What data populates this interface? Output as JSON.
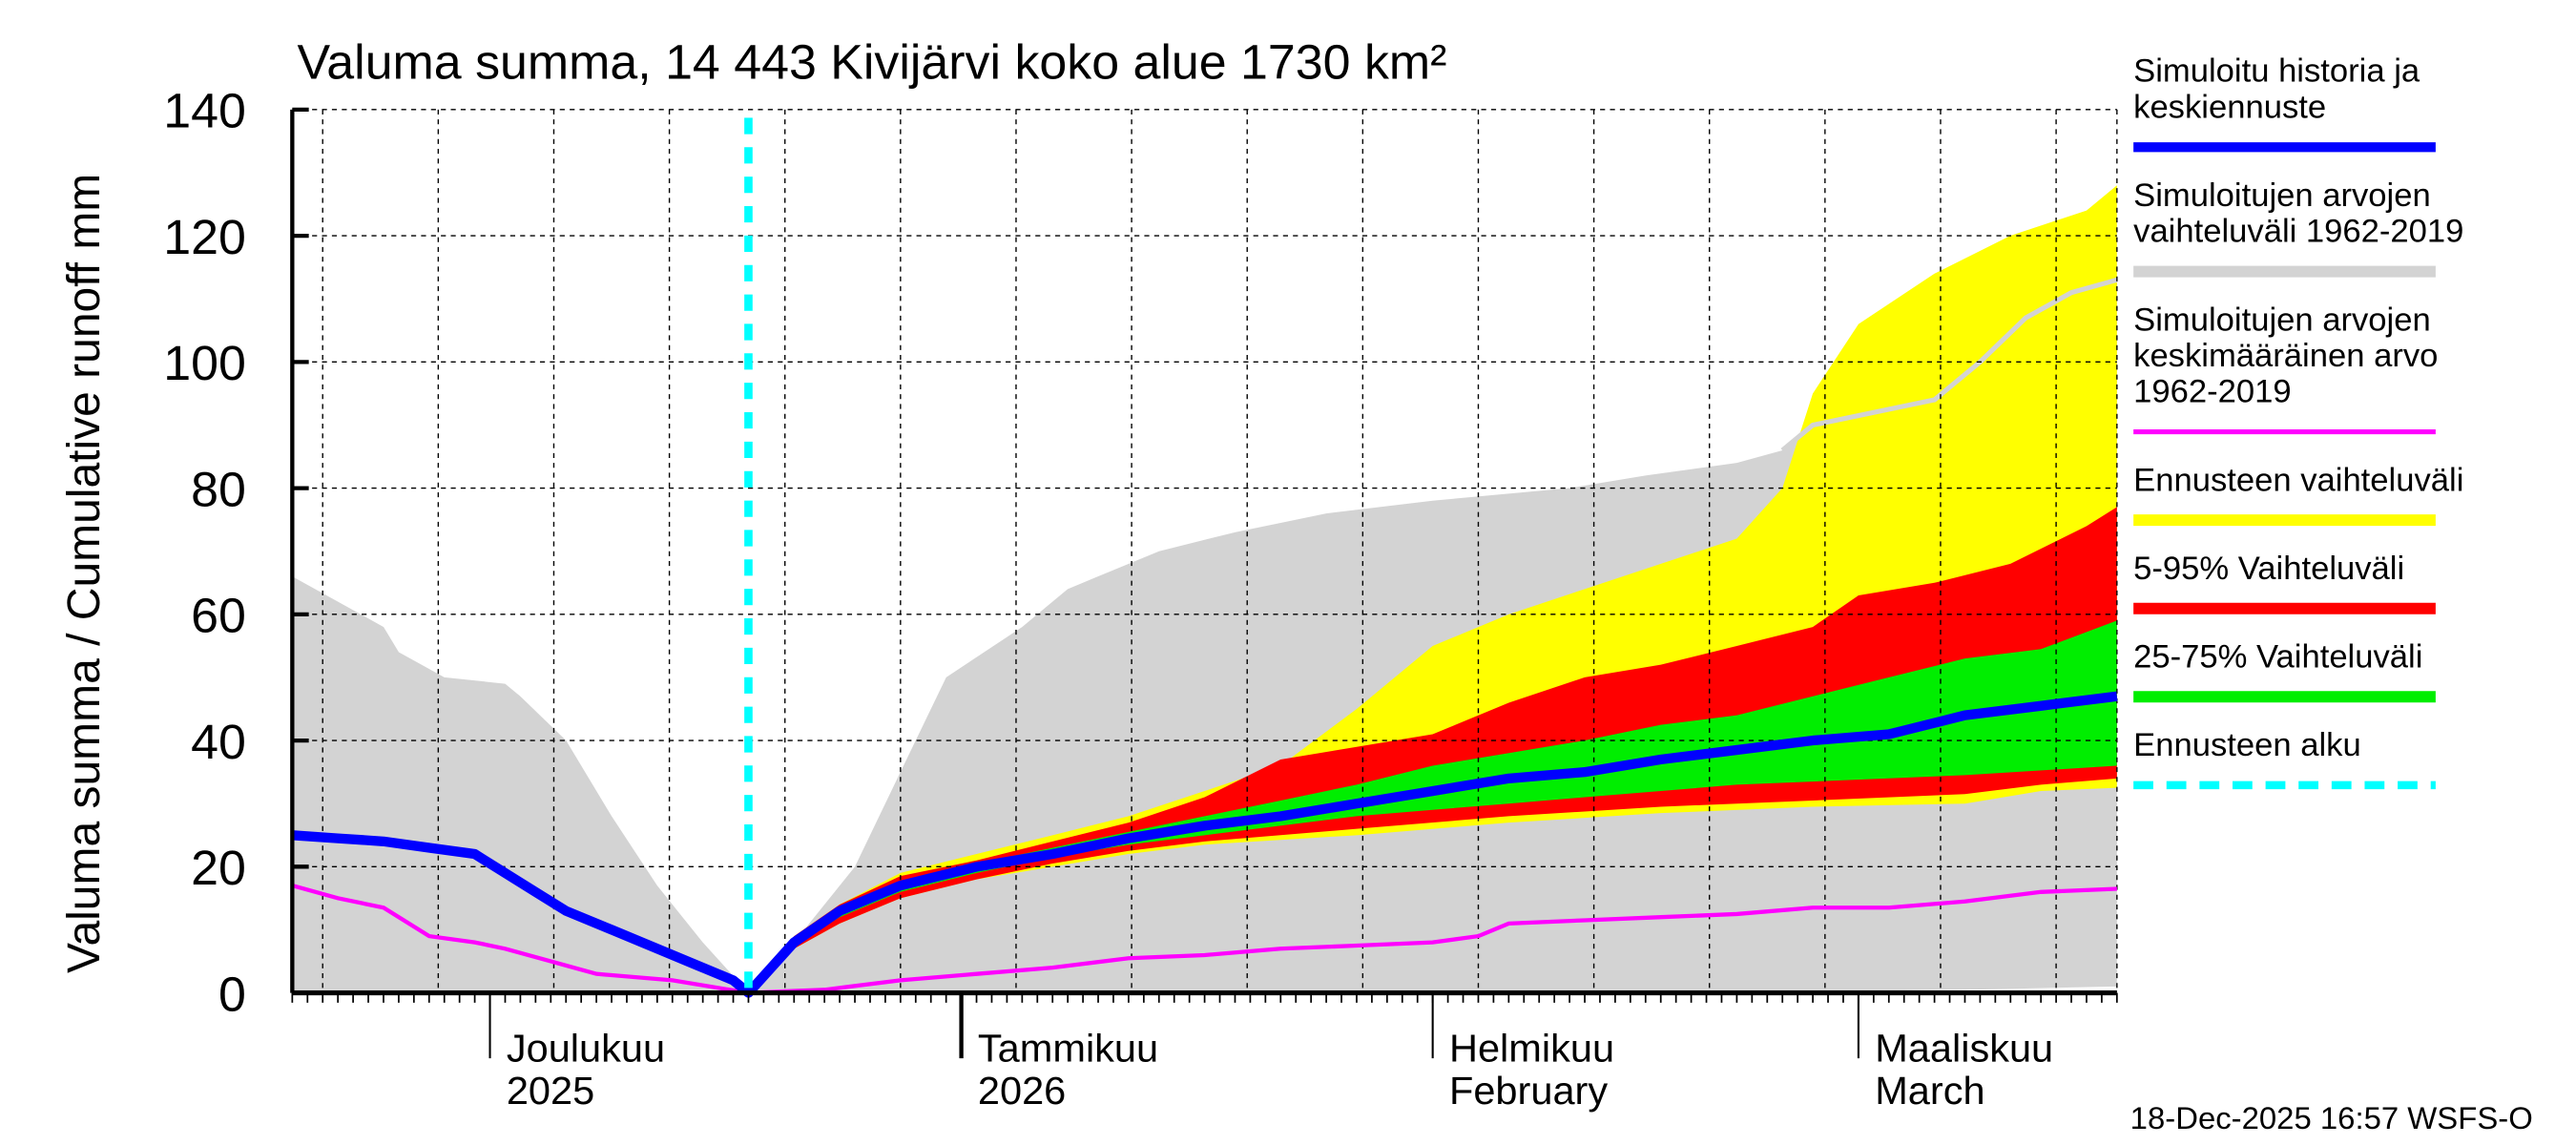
{
  "chart_data": {
    "type": "area",
    "title": "Valuma summa, 14 443 Kivijärvi koko alue 1730 km²",
    "ylabel": "Valuma summa / Cumulative runoff    mm",
    "xlabel": "",
    "x_unit": "days since 2025-11-18",
    "xlim": [
      0,
      120
    ],
    "ylim": [
      0,
      140
    ],
    "yticks": [
      0,
      20,
      40,
      60,
      80,
      100,
      120,
      140
    ],
    "grid": true,
    "legend_position": "right",
    "month_labels": [
      {
        "day": 13,
        "line1": "Joulukuu",
        "line2": "2025"
      },
      {
        "day": 44,
        "line1": "Tammikuu",
        "line2": "2026"
      },
      {
        "day": 75,
        "line1": "Helmikuu",
        "line2": "February"
      },
      {
        "day": 103,
        "line1": "Maaliskuu",
        "line2": "March"
      }
    ],
    "forecast_start_day": 30,
    "series": {
      "hist_range_upper": [
        [
          0,
          66
        ],
        [
          6,
          58
        ],
        [
          7,
          54
        ],
        [
          10,
          50
        ],
        [
          14,
          49
        ],
        [
          15,
          47
        ],
        [
          18,
          40
        ],
        [
          21,
          28
        ],
        [
          24,
          17
        ],
        [
          27,
          8
        ],
        [
          30,
          0
        ],
        [
          33,
          8
        ],
        [
          37,
          20
        ],
        [
          40,
          35
        ],
        [
          43,
          50
        ],
        [
          48,
          58
        ],
        [
          51,
          64
        ],
        [
          57,
          70
        ],
        [
          62,
          73
        ],
        [
          68,
          76
        ],
        [
          75,
          78
        ],
        [
          84,
          80
        ],
        [
          89,
          82
        ],
        [
          95,
          84
        ],
        [
          98,
          86
        ],
        [
          100,
          90
        ],
        [
          106,
          93
        ],
        [
          108,
          94
        ],
        [
          111,
          100
        ],
        [
          114,
          107
        ],
        [
          117,
          111
        ],
        [
          120,
          113
        ]
      ],
      "hist_range_lower": [
        [
          0,
          0
        ],
        [
          30,
          0
        ],
        [
          60,
          0
        ],
        [
          90,
          0
        ],
        [
          110,
          0.5
        ],
        [
          120,
          1
        ]
      ],
      "forecast_range_upper": [
        [
          30,
          0
        ],
        [
          33,
          9
        ],
        [
          36,
          14
        ],
        [
          40,
          19
        ],
        [
          45,
          22
        ],
        [
          50,
          25
        ],
        [
          55,
          28
        ],
        [
          60,
          32
        ],
        [
          65,
          36
        ],
        [
          70,
          45
        ],
        [
          75,
          55
        ],
        [
          80,
          60
        ],
        [
          85,
          64
        ],
        [
          90,
          68
        ],
        [
          95,
          72
        ],
        [
          98,
          80
        ],
        [
          100,
          95
        ],
        [
          103,
          106
        ],
        [
          108,
          114
        ],
        [
          113,
          120
        ],
        [
          118,
          124
        ],
        [
          120,
          128
        ]
      ],
      "forecast_range_lower": [
        [
          30,
          0
        ],
        [
          33,
          7
        ],
        [
          36,
          11
        ],
        [
          40,
          15
        ],
        [
          45,
          18
        ],
        [
          50,
          20
        ],
        [
          55,
          22
        ],
        [
          60,
          23.5
        ],
        [
          70,
          25
        ],
        [
          80,
          27
        ],
        [
          90,
          28.5
        ],
        [
          100,
          29.5
        ],
        [
          110,
          30
        ],
        [
          115,
          32
        ],
        [
          120,
          32.5
        ]
      ],
      "p95": [
        [
          30,
          0
        ],
        [
          33,
          9
        ],
        [
          36,
          14
        ],
        [
          40,
          18.5
        ],
        [
          45,
          21
        ],
        [
          50,
          24
        ],
        [
          55,
          27
        ],
        [
          60,
          31
        ],
        [
          65,
          37
        ],
        [
          70,
          39
        ],
        [
          75,
          41
        ],
        [
          80,
          46
        ],
        [
          85,
          50
        ],
        [
          90,
          52
        ],
        [
          95,
          55
        ],
        [
          100,
          58
        ],
        [
          103,
          63
        ],
        [
          108,
          65
        ],
        [
          113,
          68
        ],
        [
          118,
          74
        ],
        [
          120,
          77
        ]
      ],
      "p5": [
        [
          30,
          0
        ],
        [
          33,
          7
        ],
        [
          36,
          11
        ],
        [
          40,
          15
        ],
        [
          45,
          18
        ],
        [
          50,
          20.5
        ],
        [
          55,
          22.5
        ],
        [
          60,
          24
        ],
        [
          70,
          26
        ],
        [
          80,
          28
        ],
        [
          90,
          29.5
        ],
        [
          100,
          30.5
        ],
        [
          110,
          31.5
        ],
        [
          115,
          33
        ],
        [
          120,
          34
        ]
      ],
      "p75": [
        [
          30,
          0
        ],
        [
          33,
          8.5
        ],
        [
          36,
          13
        ],
        [
          40,
          17.5
        ],
        [
          45,
          20.5
        ],
        [
          50,
          23
        ],
        [
          55,
          25.5
        ],
        [
          60,
          28
        ],
        [
          65,
          30.5
        ],
        [
          70,
          33
        ],
        [
          75,
          36
        ],
        [
          80,
          38
        ],
        [
          85,
          40
        ],
        [
          90,
          42.5
        ],
        [
          95,
          44
        ],
        [
          100,
          47
        ],
        [
          105,
          50
        ],
        [
          110,
          53
        ],
        [
          115,
          54.5
        ],
        [
          120,
          59
        ]
      ],
      "p25": [
        [
          30,
          0
        ],
        [
          33,
          7.5
        ],
        [
          36,
          12
        ],
        [
          40,
          16
        ],
        [
          45,
          19
        ],
        [
          50,
          21.5
        ],
        [
          55,
          23.5
        ],
        [
          60,
          25
        ],
        [
          65,
          26.5
        ],
        [
          70,
          28
        ],
        [
          75,
          29
        ],
        [
          80,
          30
        ],
        [
          85,
          31
        ],
        [
          90,
          32
        ],
        [
          95,
          33
        ],
        [
          100,
          33.5
        ],
        [
          110,
          34.5
        ],
        [
          120,
          36
        ]
      ],
      "simulated_median": [
        [
          0,
          25
        ],
        [
          3,
          24.5
        ],
        [
          6,
          24
        ],
        [
          9,
          23
        ],
        [
          12,
          22
        ],
        [
          14,
          19
        ],
        [
          16,
          16
        ],
        [
          18,
          13
        ],
        [
          21,
          10
        ],
        [
          24,
          7
        ],
        [
          27,
          4
        ],
        [
          29,
          2
        ],
        [
          30,
          0
        ],
        [
          33,
          8
        ],
        [
          36,
          13
        ],
        [
          40,
          17
        ],
        [
          45,
          20
        ],
        [
          50,
          22
        ],
        [
          55,
          24.5
        ],
        [
          60,
          26.5
        ],
        [
          65,
          28
        ],
        [
          70,
          30
        ],
        [
          75,
          32
        ],
        [
          80,
          34
        ],
        [
          85,
          35
        ],
        [
          90,
          37
        ],
        [
          95,
          38.5
        ],
        [
          100,
          40
        ],
        [
          105,
          41
        ],
        [
          110,
          44
        ],
        [
          115,
          45.5
        ],
        [
          120,
          47
        ]
      ],
      "hist_mean": [
        [
          0,
          17
        ],
        [
          3,
          15
        ],
        [
          6,
          13.5
        ],
        [
          9,
          9
        ],
        [
          12,
          8
        ],
        [
          14,
          7
        ],
        [
          17,
          5
        ],
        [
          20,
          3
        ],
        [
          25,
          2
        ],
        [
          30,
          0
        ],
        [
          35,
          0.5
        ],
        [
          40,
          2
        ],
        [
          45,
          3
        ],
        [
          50,
          4
        ],
        [
          55,
          5.5
        ],
        [
          60,
          6
        ],
        [
          65,
          7
        ],
        [
          70,
          7.5
        ],
        [
          75,
          8
        ],
        [
          78,
          9
        ],
        [
          80,
          11
        ],
        [
          85,
          11.5
        ],
        [
          90,
          12
        ],
        [
          95,
          12.5
        ],
        [
          100,
          13.5
        ],
        [
          105,
          13.5
        ],
        [
          110,
          14.5
        ],
        [
          115,
          16
        ],
        [
          120,
          16.5
        ]
      ]
    },
    "legend": [
      {
        "label_lines": [
          "Simuloitu historia ja",
          "keskiennuste"
        ],
        "color": "#0000ff",
        "style": "thick"
      },
      {
        "label_lines": [
          "Simuloitujen arvojen",
          "vaihteluväli 1962-2019"
        ],
        "color": "#d3d3d3",
        "style": "band"
      },
      {
        "label_lines": [
          "Simuloitujen arvojen",
          "keskimääräinen arvo",
          "   1962-2019"
        ],
        "color": "#ff00ff",
        "style": "thin"
      },
      {
        "label_lines": [
          "Ennusteen vaihteluväli"
        ],
        "color": "#ffff00",
        "style": "band"
      },
      {
        "label_lines": [
          "5-95% Vaihteluväli"
        ],
        "color": "#ff0000",
        "style": "band"
      },
      {
        "label_lines": [
          "25-75% Vaihteluväli"
        ],
        "color": "#00ee00",
        "style": "band"
      },
      {
        "label_lines": [
          "Ennusteen alku"
        ],
        "color": "#00ffff",
        "style": "dashed"
      }
    ],
    "timestamp": "18-Dec-2025 16:57 WSFS-O"
  }
}
